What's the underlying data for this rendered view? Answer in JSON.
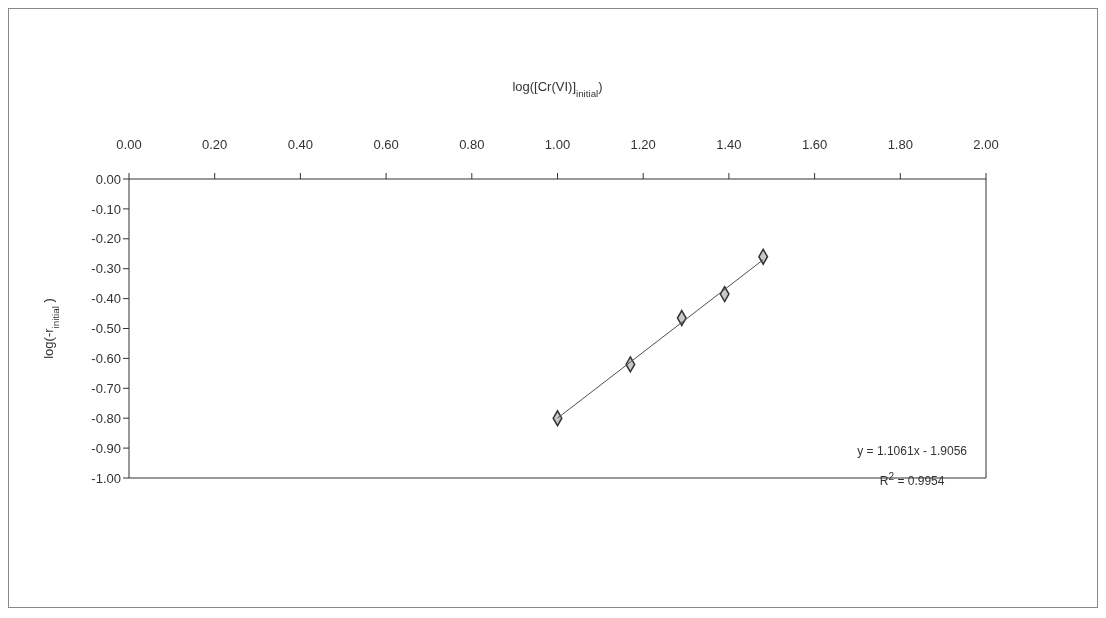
{
  "chart_data": {
    "type": "scatter",
    "xlabel": "log([Cr(VI)]$_{initial}$)",
    "ylabel": "log(-r$_{initial}$ )",
    "xlim": [
      0,
      2
    ],
    "xticks": [
      {
        "value": 0,
        "label": "0.00"
      },
      {
        "value": 0.2,
        "label": "0.20"
      },
      {
        "value": 0.4,
        "label": "0.40"
      },
      {
        "value": 0.6,
        "label": "0.60"
      },
      {
        "value": 0.8,
        "label": "0.80"
      },
      {
        "value": 1,
        "label": "1.00"
      },
      {
        "value": 1.2,
        "label": "1.20"
      },
      {
        "value": 1.4,
        "label": "1.40"
      },
      {
        "value": 1.6,
        "label": "1.60"
      },
      {
        "value": 1.8,
        "label": "1.80"
      },
      {
        "value": 2,
        "label": "2.00"
      }
    ],
    "ylim": [
      -1,
      0
    ],
    "yticks": [
      {
        "value": 0,
        "label": "0.00"
      },
      {
        "value": -0.1,
        "label": "-0.10"
      },
      {
        "value": -0.2,
        "label": "-0.20"
      },
      {
        "value": -0.3,
        "label": "-0.30"
      },
      {
        "value": -0.4,
        "label": "-0.40"
      },
      {
        "value": -0.5,
        "label": "-0.50"
      },
      {
        "value": -0.6,
        "label": "-0.60"
      },
      {
        "value": -0.7,
        "label": "-0.70"
      },
      {
        "value": -0.8,
        "label": "-0.80"
      },
      {
        "value": -0.9,
        "label": "-0.90"
      },
      {
        "value": -1,
        "label": "-1.00"
      }
    ],
    "series": [
      {
        "type": "scatter",
        "x": [
          1.0,
          1.17,
          1.29,
          1.39,
          1.48
        ],
        "values": [
          -0.8,
          -0.62,
          -0.465,
          -0.385,
          -0.26
        ],
        "color": "#c8c8c8",
        "marker": "diamond"
      },
      {
        "type": "line",
        "x": [
          1.0,
          1.48
        ],
        "values": [
          -0.8,
          -0.27
        ],
        "color": "#505050",
        "marker": "none"
      }
    ],
    "annotations": [
      "y = 1.1061x - 1.9056",
      "R$^{2}$ = 0.9954"
    ],
    "line_style": "solid"
  }
}
